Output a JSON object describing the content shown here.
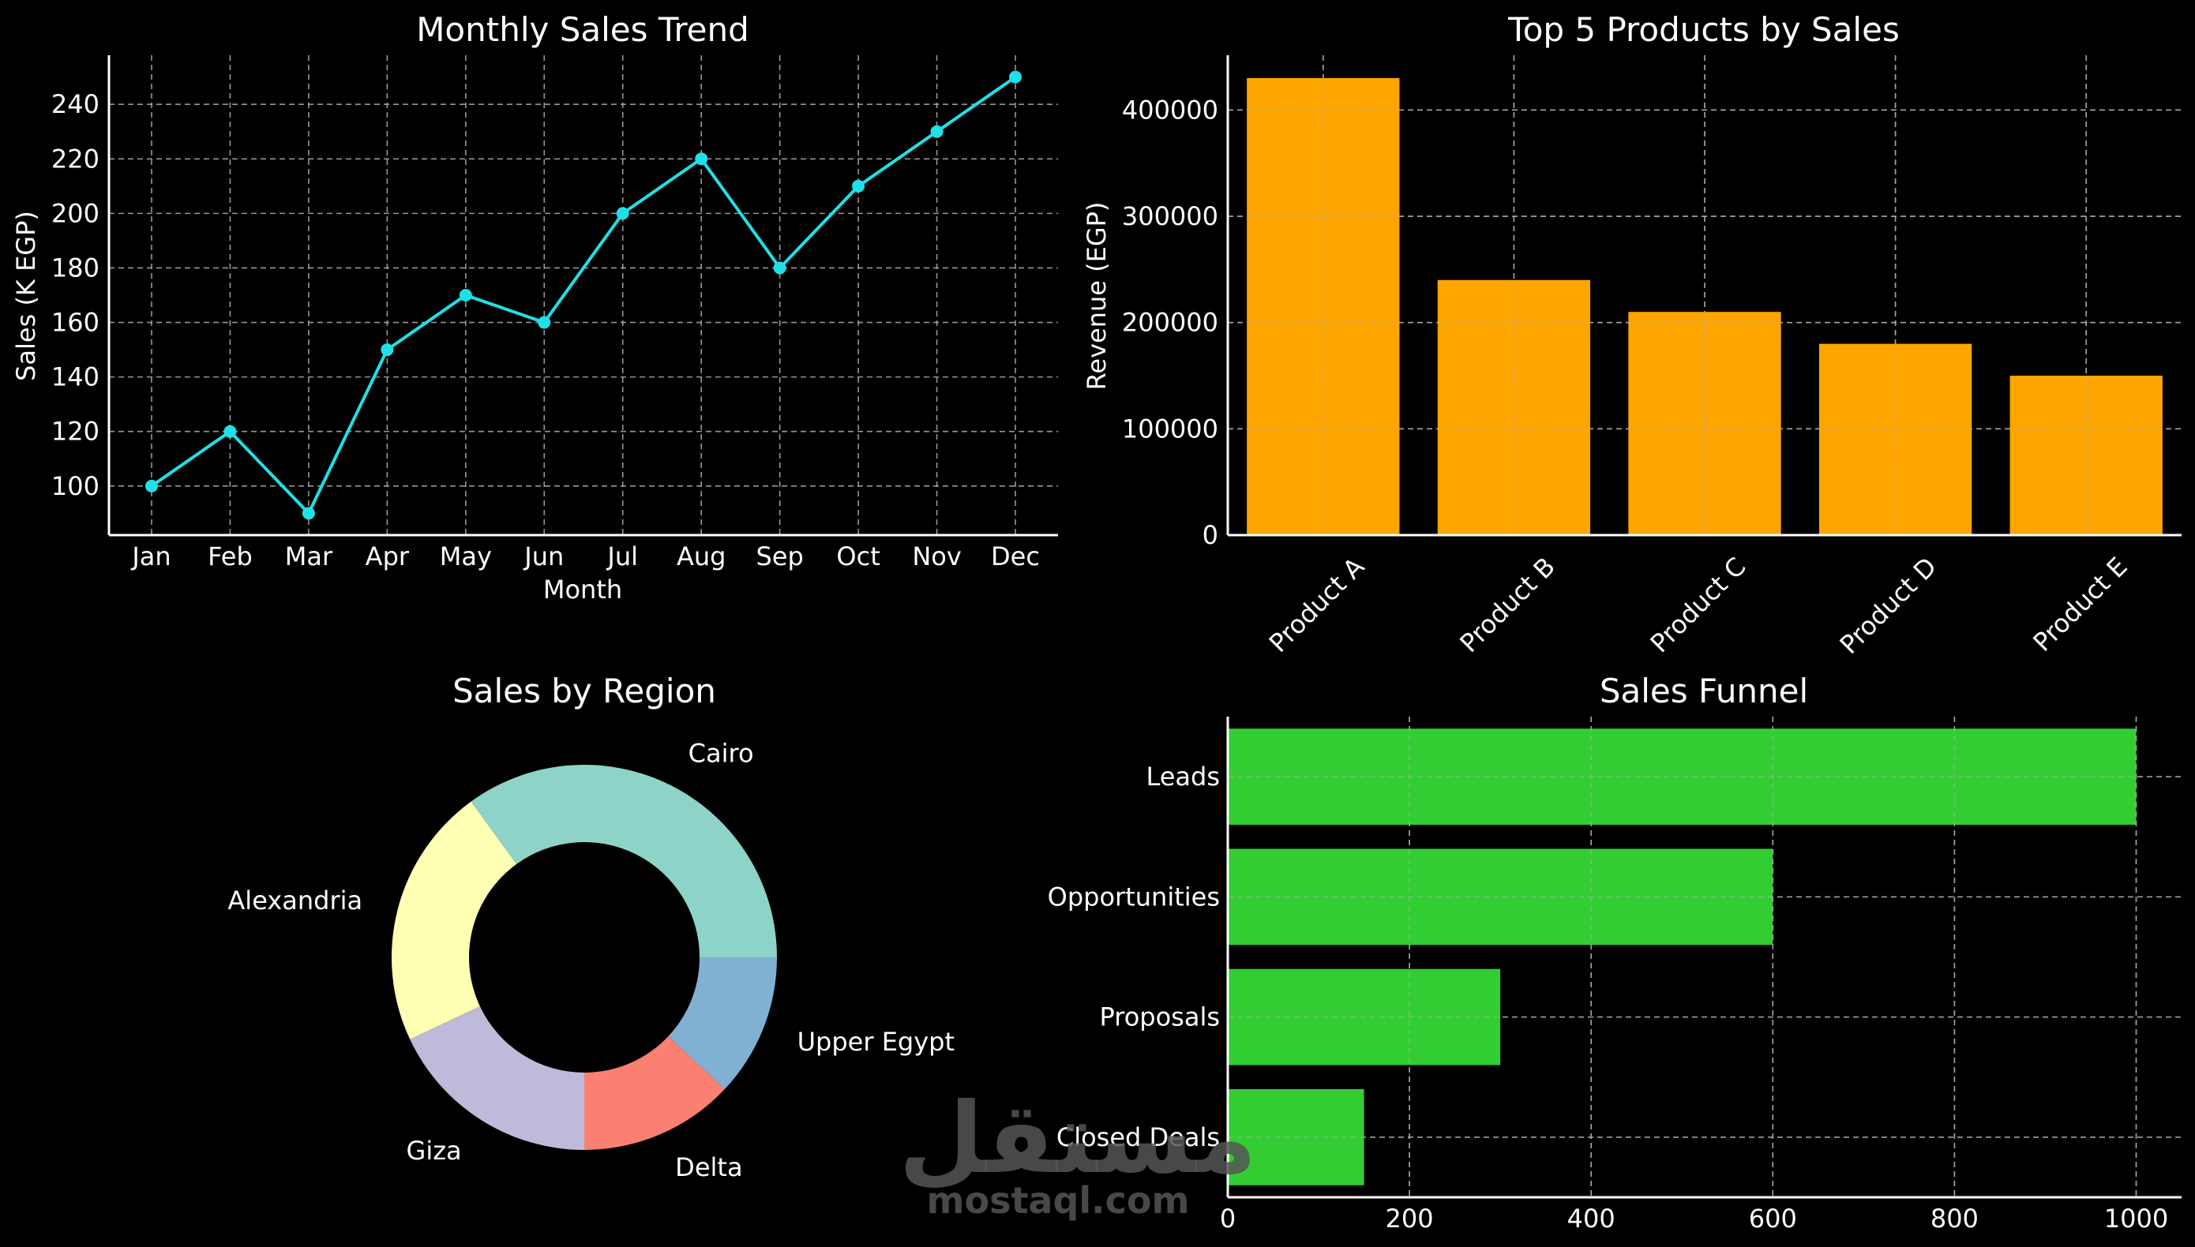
{
  "colors": {
    "background": "#000000",
    "foreground": "#ffffff",
    "grid": "#b0b0b0",
    "line": "#1fe0e8",
    "bar": "#ffa500",
    "funnel": "#32cd32",
    "watermark": "#555555"
  },
  "watermark": {
    "arabic": "مستقل",
    "latin": "mostaql.com"
  },
  "chart_data": [
    {
      "type": "line",
      "title": "Monthly Sales Trend",
      "xlabel": "Month",
      "ylabel": "Sales (K EGP)",
      "categories": [
        "Jan",
        "Feb",
        "Mar",
        "Apr",
        "May",
        "Jun",
        "Jul",
        "Aug",
        "Sep",
        "Oct",
        "Nov",
        "Dec"
      ],
      "values": [
        100,
        120,
        90,
        150,
        170,
        160,
        200,
        220,
        180,
        210,
        230,
        250
      ],
      "ylim": [
        82,
        258
      ],
      "yticks": [
        100,
        120,
        140,
        160,
        180,
        200,
        220,
        240
      ],
      "grid": true,
      "marker": "circle"
    },
    {
      "type": "bar",
      "title": "Top 5 Products by Sales",
      "xlabel": "",
      "ylabel": "Revenue (EGP)",
      "categories": [
        "Product A",
        "Product B",
        "Product C",
        "Product D",
        "Product E"
      ],
      "values": [
        430000,
        240000,
        210000,
        180000,
        150000
      ],
      "ylim": [
        0,
        451500
      ],
      "yticks": [
        0,
        100000,
        200000,
        300000,
        400000
      ],
      "tick_rotation": 45,
      "grid": true
    },
    {
      "type": "pie",
      "style": "donut",
      "title": "Sales by Region",
      "labels": [
        "Cairo",
        "Alexandria",
        "Giza",
        "Delta",
        "Upper Egypt"
      ],
      "values": [
        35,
        22,
        18,
        13,
        12
      ],
      "colors": [
        "#8dd3c7",
        "#ffffb3",
        "#bebada",
        "#fb8072",
        "#80b1d3"
      ],
      "start_angle": 0
    },
    {
      "type": "bar",
      "orientation": "horizontal",
      "title": "Sales Funnel",
      "xlabel": "",
      "ylabel": "",
      "categories": [
        "Leads",
        "Opportunities",
        "Proposals",
        "Closed Deals"
      ],
      "values": [
        1000,
        600,
        300,
        150
      ],
      "xlim": [
        0,
        1050
      ],
      "xticks": [
        0,
        200,
        400,
        600,
        800,
        1000
      ],
      "grid": true
    }
  ]
}
